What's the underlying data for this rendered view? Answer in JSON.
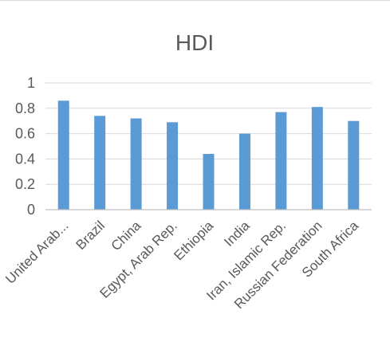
{
  "chart_data": {
    "type": "bar",
    "title": "HDI",
    "categories": [
      "United Arab Emirates",
      "Brazil",
      "China",
      "Egypt, Arab Rep.",
      "Ethiopia",
      "India",
      "Iran, Islamic Rep.",
      "Russian Federation",
      "South Africa"
    ],
    "category_labels": [
      "United Arab...",
      "Brazil",
      "China",
      "Egypt, Arab Rep.",
      "Ethiopia",
      "India",
      "Iran, Islamic Rep.",
      "Russian Federation",
      "South Africa"
    ],
    "values": [
      0.86,
      0.74,
      0.72,
      0.69,
      0.44,
      0.6,
      0.77,
      0.81,
      0.7
    ],
    "xlabel": "",
    "ylabel": "",
    "ylim": [
      0,
      1
    ],
    "yticks": [
      "0",
      "0.2",
      "0.4",
      "0.6",
      "0.8",
      "1"
    ],
    "grid": true,
    "legend": "none",
    "bar_color": "#5b9bd5"
  }
}
